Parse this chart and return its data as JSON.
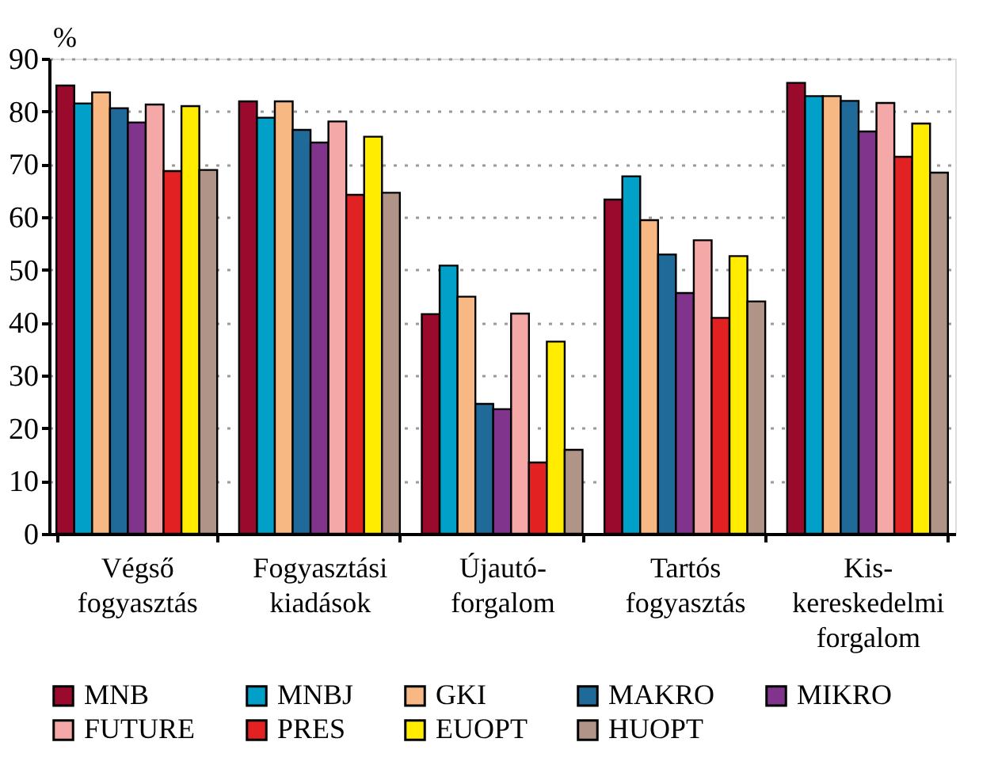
{
  "chart_data": {
    "type": "bar",
    "ylabel": "%",
    "categories": [
      "Végső fogyasztás",
      "Fogyasztási kiadások",
      "Újautó-forgalom",
      "Tartós fogyasztás",
      "Kis-kereskedelmi forgalom"
    ],
    "series": [
      {
        "name": "MNB",
        "color": "#990a2c",
        "values": [
          84.9,
          81.9,
          41.6,
          63.3,
          85.4
        ]
      },
      {
        "name": "MNBJ",
        "color": "#00a0c8",
        "values": [
          81.5,
          78.8,
          50.8,
          67.7,
          82.9
        ]
      },
      {
        "name": "GKI",
        "color": "#f8b884",
        "values": [
          83.6,
          81.9,
          44.9,
          59.4,
          82.9
        ]
      },
      {
        "name": "MAKRO",
        "color": "#1f6a98",
        "values": [
          80.6,
          76.5,
          24.6,
          52.9,
          82.0
        ]
      },
      {
        "name": "MIKRO",
        "color": "#80348c",
        "values": [
          77.9,
          74.1,
          23.6,
          45.6,
          76.2
        ]
      },
      {
        "name": "FUTURE",
        "color": "#f4a8a8",
        "values": [
          81.3,
          78.1,
          41.7,
          55.6,
          81.6
        ]
      },
      {
        "name": "PRES",
        "color": "#e22222",
        "values": [
          68.7,
          64.2,
          13.5,
          40.9,
          71.4
        ]
      },
      {
        "name": "EUOPT",
        "color": "#ffec00",
        "values": [
          81.0,
          75.2,
          36.4,
          52.6,
          77.7
        ]
      },
      {
        "name": "HUOPT",
        "color": "#b09488",
        "values": [
          68.9,
          64.6,
          15.9,
          44.0,
          68.4
        ]
      }
    ],
    "ylim": [
      0,
      90
    ],
    "yticks": [
      0,
      10,
      20,
      30,
      40,
      50,
      60,
      70,
      80,
      90
    ],
    "grid": "y",
    "legend": "bottom"
  }
}
